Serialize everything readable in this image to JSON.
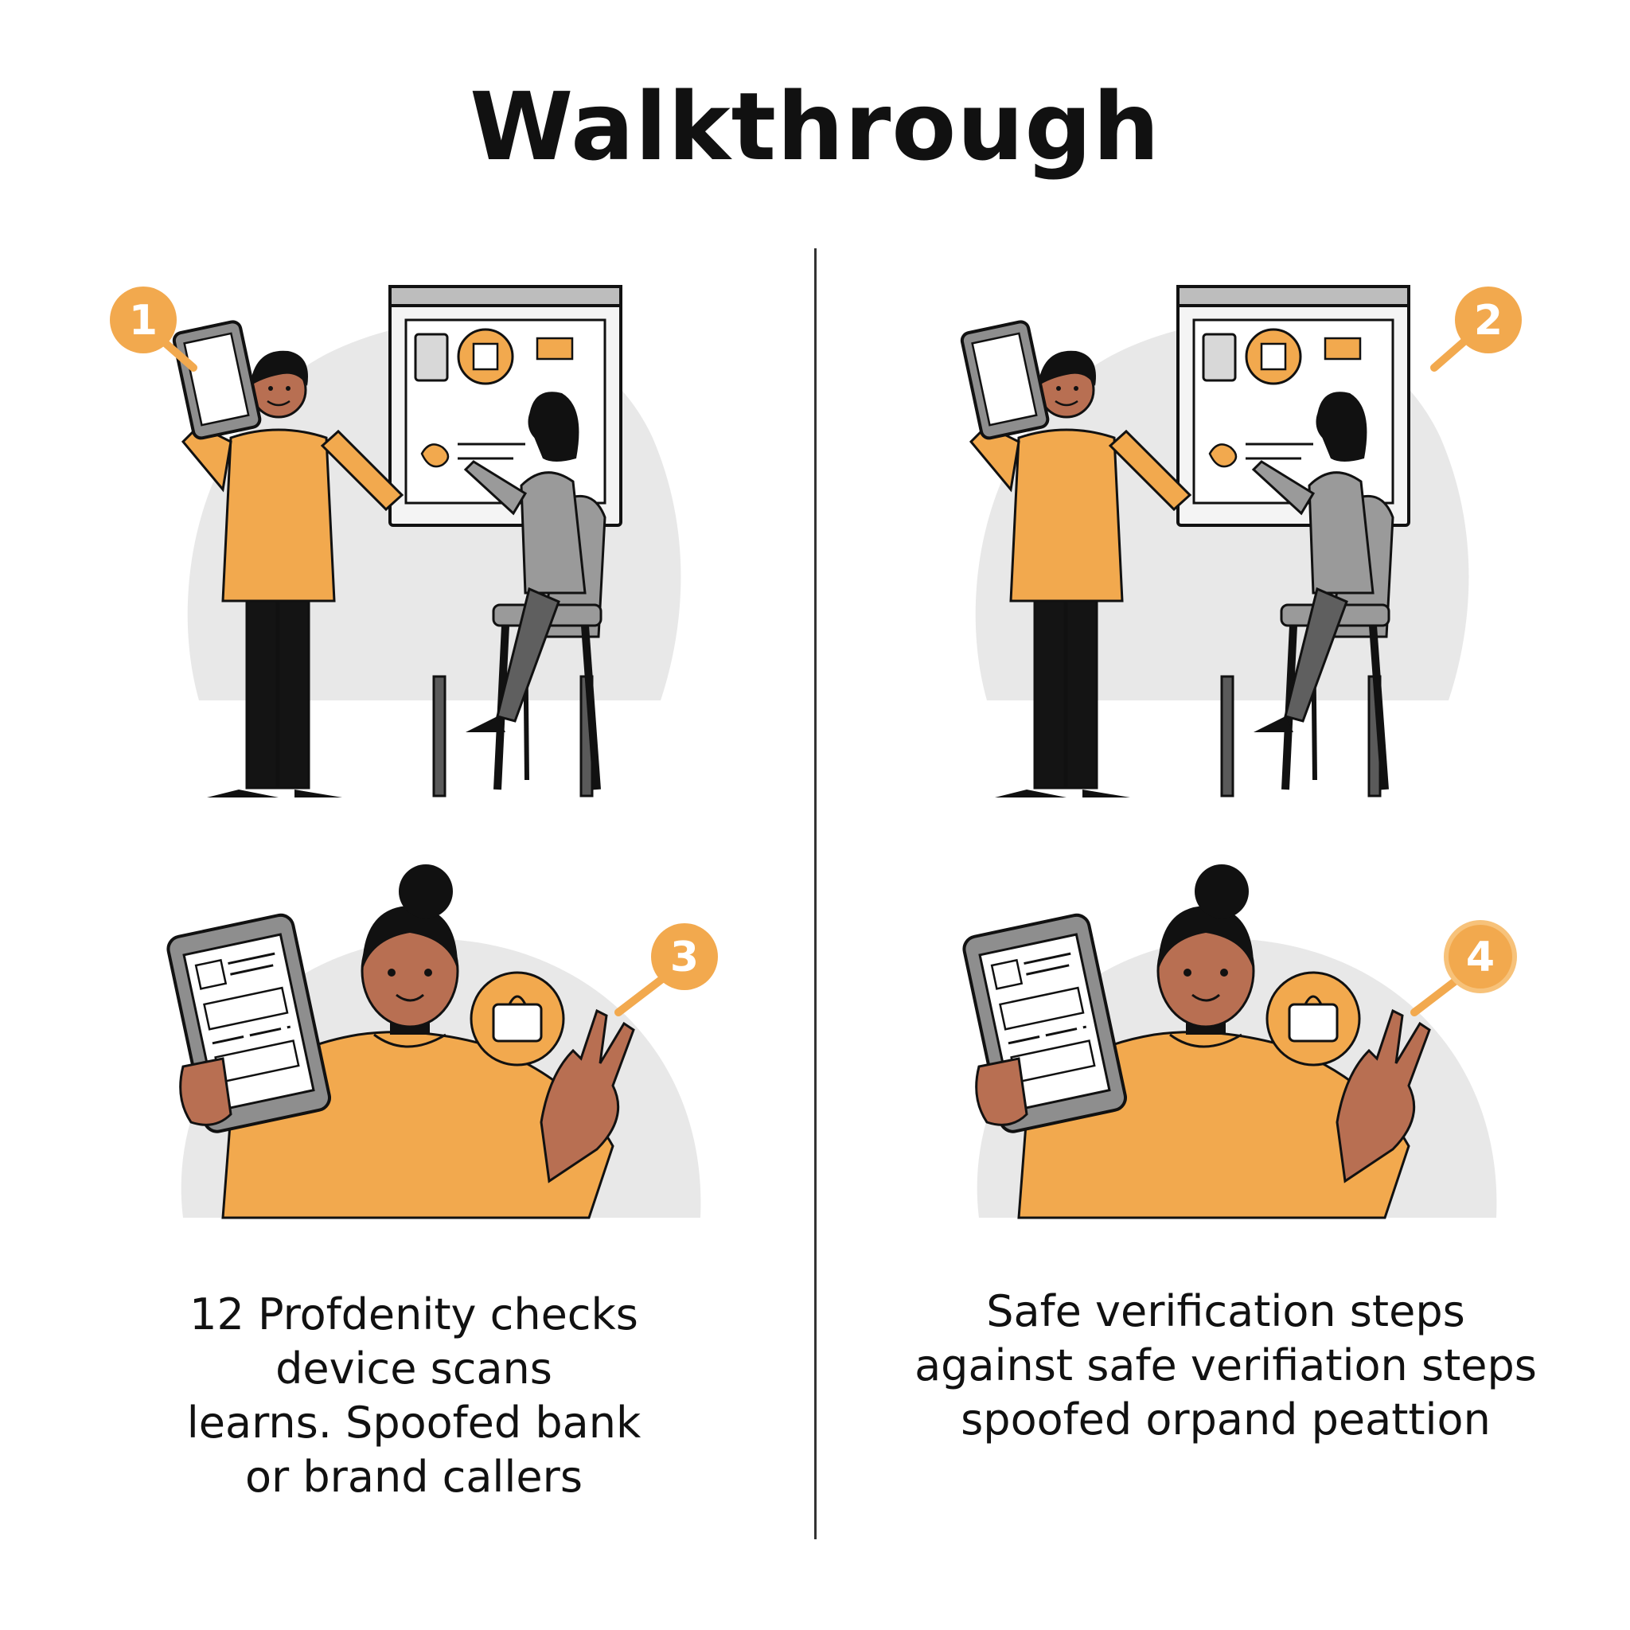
{
  "title": "Walkthrough",
  "colors": {
    "accent": "#F2A94E",
    "skin": "#B86F52",
    "hair": "#111111",
    "gray_fill": "#8E8E8E",
    "bg_blob": "#E8E8E8",
    "pants": "#141414"
  },
  "panels": [
    {
      "step": "1",
      "icon": "presenter-scene"
    },
    {
      "step": "2",
      "icon": "presenter-scene"
    },
    {
      "step": "3",
      "icon": "tablet-person"
    },
    {
      "step": "4",
      "icon": "tablet-person"
    }
  ],
  "captions": {
    "left": [
      "12 Profdenity checks",
      "device scans",
      "learns. Spoofed bank",
      "or brand callers"
    ],
    "right": [
      "Safe verification steps",
      "against safe verifiation steps",
      "spoofed orpand peattion"
    ]
  }
}
